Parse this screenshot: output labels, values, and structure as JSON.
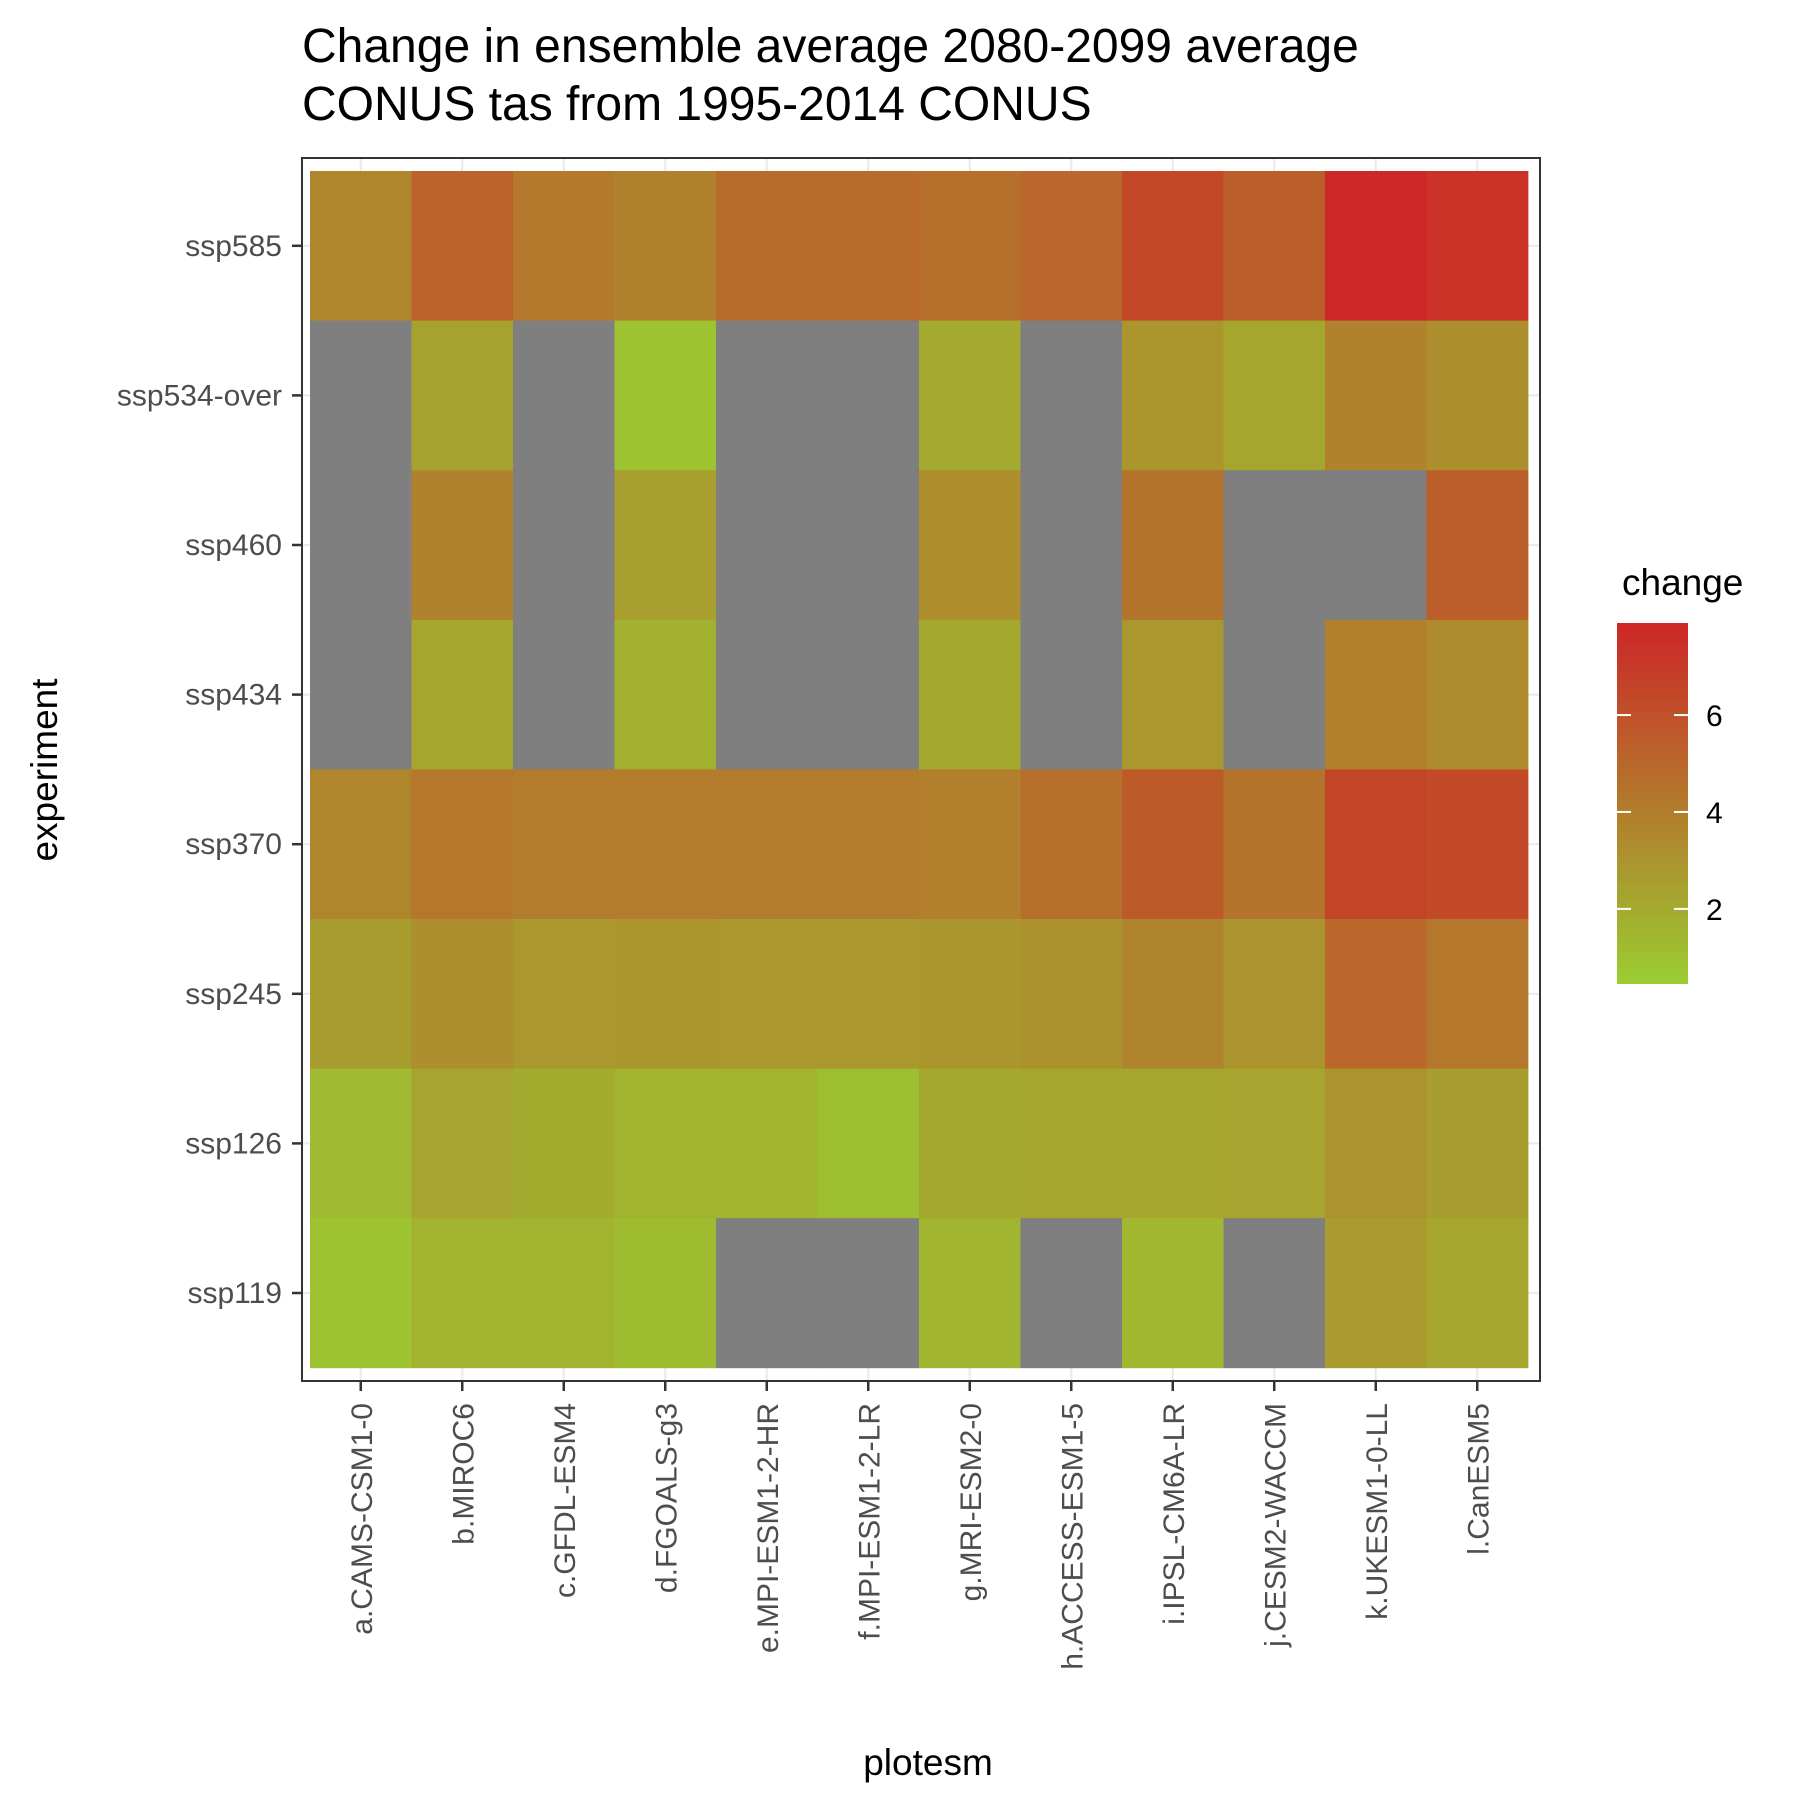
{
  "chart_data": {
    "type": "heatmap",
    "title_lines": [
      "Change in ensemble average 2080-2099 average",
      "CONUS tas from 1995-2014 CONUS"
    ],
    "xlabel": "plotesm",
    "ylabel": "experiment",
    "x_categories": [
      "a.CAMS-CSM1-0",
      "b.MIROC6",
      "c.GFDL-ESM4",
      "d.FGOALS-g3",
      "e.MPI-ESM1-2-HR",
      "f.MPI-ESM1-2-LR",
      "g.MRI-ESM2-0",
      "h.ACCESS-ESM1-5",
      "i.IPSL-CM6A-LR",
      "j.CESM2-WACCM",
      "k.UKESM1-0-LL",
      "l.CanESM5"
    ],
    "y_categories": [
      "ssp585",
      "ssp534-over",
      "ssp460",
      "ssp434",
      "ssp370",
      "ssp245",
      "ssp126",
      "ssp119"
    ],
    "values": [
      [
        3.6,
        5.2,
        4.2,
        3.8,
        4.8,
        4.8,
        4.6,
        5.0,
        6.4,
        5.4,
        7.8,
        7.4
      ],
      [
        null,
        2.4,
        null,
        0.9,
        null,
        null,
        2.0,
        null,
        2.9,
        2.2,
        3.8,
        3.2
      ],
      [
        null,
        3.8,
        null,
        2.5,
        null,
        null,
        3.3,
        null,
        4.4,
        null,
        null,
        5.4
      ],
      [
        null,
        2.2,
        null,
        1.7,
        null,
        null,
        2.1,
        null,
        2.8,
        null,
        3.9,
        3.4
      ],
      [
        3.6,
        4.3,
        4.1,
        4.1,
        4.1,
        4.1,
        3.9,
        4.6,
        5.6,
        4.4,
        6.5,
        6.3
      ],
      [
        2.6,
        3.2,
        2.8,
        2.9,
        2.8,
        2.8,
        2.9,
        3.1,
        3.7,
        3.0,
        5.0,
        4.3
      ],
      [
        1.3,
        2.3,
        1.9,
        1.6,
        1.6,
        1.1,
        2.1,
        2.2,
        2.2,
        2.3,
        3.0,
        2.6
      ],
      [
        0.9,
        1.6,
        1.6,
        1.2,
        null,
        null,
        1.5,
        null,
        1.4,
        null,
        2.7,
        2.2
      ]
    ],
    "missing_color": "#7f7f7f",
    "colorscale": {
      "low": "#9acd32",
      "high": "#cd2626",
      "min": 0.45,
      "max": 7.9
    },
    "legend": {
      "title": "change",
      "ticks": [
        2,
        4,
        6
      ],
      "position": "right"
    },
    "grid": true
  }
}
